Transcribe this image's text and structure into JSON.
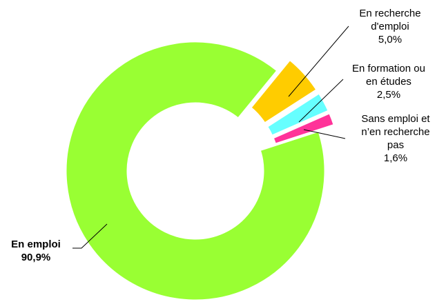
{
  "chart_data": {
    "type": "donut",
    "categories": [
      "En emploi",
      "En recherche\nd'emploi",
      "En formation ou\nen études",
      "Sans emploi et\nn’en recherche\npas"
    ],
    "values": [
      90.9,
      5.0,
      2.5,
      1.6
    ],
    "value_labels": [
      "90,9%",
      "5,0%",
      "2,5%",
      "1,6%"
    ],
    "colors": [
      "#99ff33",
      "#ffcc00",
      "#66ffff",
      "#ff3399"
    ]
  }
}
